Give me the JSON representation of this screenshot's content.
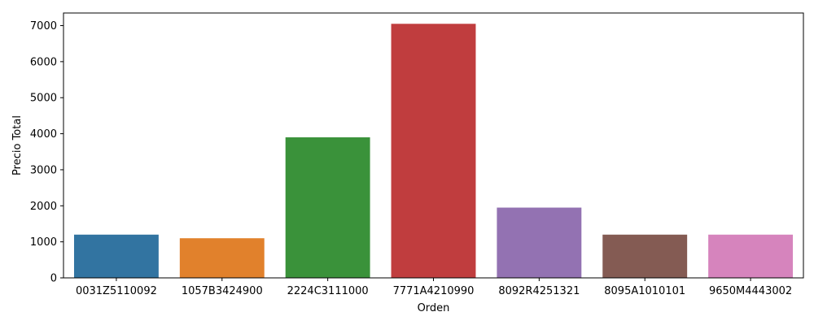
{
  "chart_data": {
    "type": "bar",
    "xlabel": "Orden",
    "ylabel": "Precio Total",
    "ylim": [
      0,
      7350
    ],
    "yticks": [
      0,
      1000,
      2000,
      3000,
      4000,
      5000,
      6000,
      7000
    ],
    "categories": [
      "0031Z5110092",
      "1057B3424900",
      "2224C3111000",
      "7771A4210990",
      "8092R4251321",
      "8095A1010101",
      "9650M4443002"
    ],
    "values": [
      1200,
      1100,
      3900,
      7050,
      1950,
      1200,
      1200
    ],
    "colors": [
      "#3274a1",
      "#e1812c",
      "#3a923a",
      "#c03d3e",
      "#9372b2",
      "#845b53",
      "#d684bd"
    ],
    "grid": false,
    "legend": "none"
  }
}
